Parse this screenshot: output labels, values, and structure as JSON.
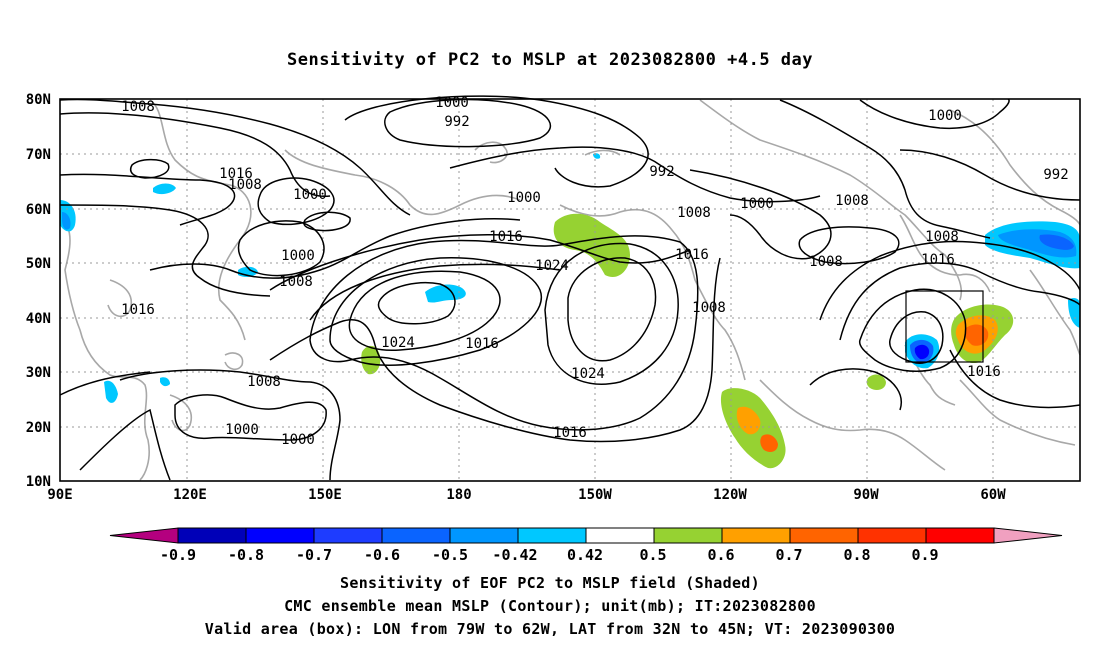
{
  "title": "Sensitivity of PC2 to MSLP at 2023082800 +4.5 day",
  "map": {
    "lat_labels": [
      "80N",
      "70N",
      "60N",
      "50N",
      "40N",
      "30N",
      "20N",
      "10N"
    ],
    "lon_labels": [
      "90E",
      "120E",
      "150E",
      "180",
      "150W",
      "120W",
      "90W",
      "60W"
    ],
    "contour_labels": [
      {
        "text": "1008"
      },
      {
        "text": "1000"
      },
      {
        "text": "992"
      },
      {
        "text": "992"
      },
      {
        "text": "1000"
      },
      {
        "text": "992"
      },
      {
        "text": "1016"
      },
      {
        "text": "1008"
      },
      {
        "text": "1000"
      },
      {
        "text": "1000"
      },
      {
        "text": "1000"
      },
      {
        "text": "1008"
      },
      {
        "text": "1008"
      },
      {
        "text": "1016"
      },
      {
        "text": "1008"
      },
      {
        "text": "1000"
      },
      {
        "text": "1008"
      },
      {
        "text": "1016"
      },
      {
        "text": "1024"
      },
      {
        "text": "1016"
      },
      {
        "text": "1008"
      },
      {
        "text": "1016"
      },
      {
        "text": "1008"
      },
      {
        "text": "1024"
      },
      {
        "text": "1016"
      },
      {
        "text": "1024"
      },
      {
        "text": "1008"
      },
      {
        "text": "1000"
      },
      {
        "text": "1000"
      },
      {
        "text": "1016"
      },
      {
        "text": "1016"
      }
    ],
    "valid_box": {
      "lon_from": "79W",
      "lon_to": "62W",
      "lat_from": "32N",
      "lat_to": "45N"
    }
  },
  "colorbar": {
    "labels": [
      "-0.9",
      "-0.8",
      "-0.7",
      "-0.6",
      "-0.5",
      "-0.42",
      "0.42",
      "0.5",
      "0.6",
      "0.7",
      "0.8",
      "0.9"
    ],
    "colors": [
      "#0000b8",
      "#0000ff",
      "#1e3cff",
      "#0a64ff",
      "#0096ff",
      "#00c8ff",
      "#ffffff",
      "#96d232",
      "#ffa000",
      "#ff6400",
      "#ff3200",
      "#ff0000"
    ],
    "under_color": "#b4007f",
    "over_color": "#f0a0c0"
  },
  "captions": {
    "line1": "Sensitivity of EOF PC2 to MSLP field (Shaded)",
    "line2": "CMC ensemble mean MSLP (Contour); unit(mb); IT:2023082800",
    "line3": "Valid area (box): LON from 79W to 62W, LAT from 32N to 45N; VT: 2023090300"
  }
}
